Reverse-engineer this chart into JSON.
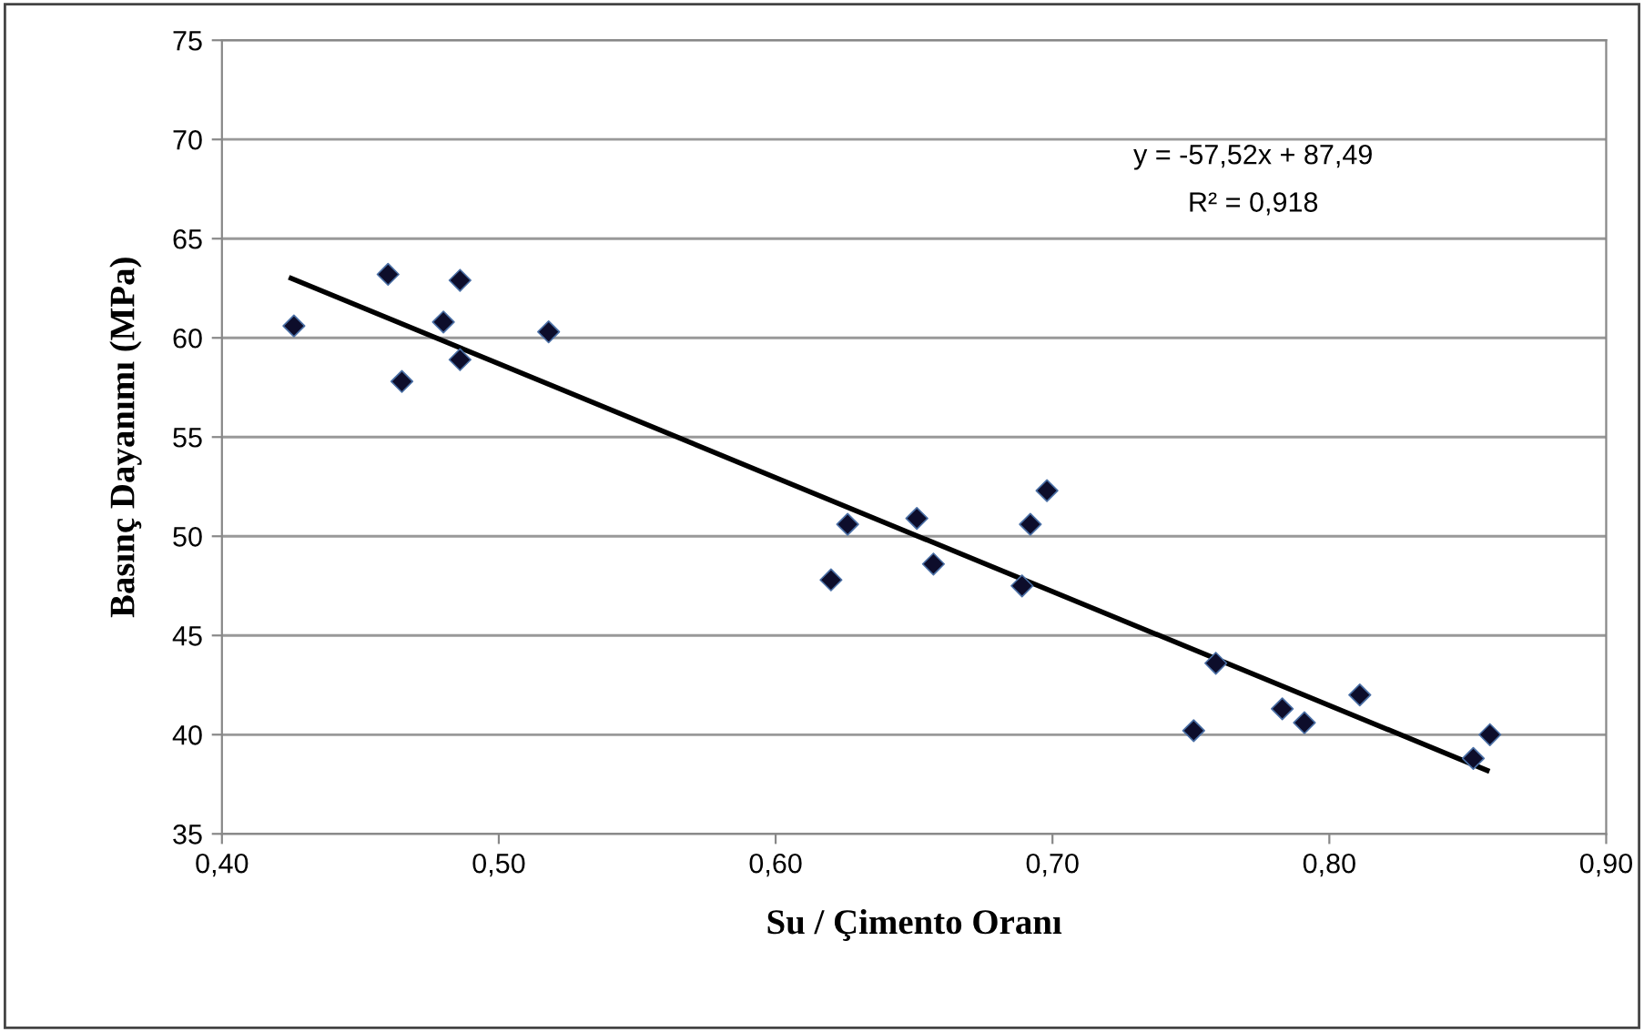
{
  "chart_data": {
    "type": "scatter",
    "xlabel": "Su / Çimento Oranı",
    "ylabel": "Basınç Dayanımı (MPa)",
    "xlim": [
      0.4,
      0.9
    ],
    "ylim": [
      35,
      75
    ],
    "xticks": [
      {
        "value": 0.4,
        "label": "0,40"
      },
      {
        "value": 0.5,
        "label": "0,50"
      },
      {
        "value": 0.6,
        "label": "0,60"
      },
      {
        "value": 0.7,
        "label": "0,70"
      },
      {
        "value": 0.8,
        "label": "0,80"
      },
      {
        "value": 0.9,
        "label": "0,90"
      }
    ],
    "yticks": [
      35,
      40,
      45,
      50,
      55,
      60,
      65,
      70,
      75
    ],
    "grid": "y",
    "legend": false,
    "marker": "diamond",
    "annotations": [
      "y = -57,52x + 87,49",
      "R² = 0,918"
    ],
    "series": [
      {
        "color": "#0d0d2b",
        "x": [
          0.426,
          0.46,
          0.465,
          0.48,
          0.486,
          0.486,
          0.518,
          0.62,
          0.626,
          0.651,
          0.657,
          0.689,
          0.692,
          0.698,
          0.751,
          0.759,
          0.783,
          0.791,
          0.811,
          0.852,
          0.858
        ],
        "values": [
          60.6,
          63.2,
          57.8,
          60.8,
          62.9,
          58.9,
          60.3,
          47.8,
          50.6,
          50.9,
          48.6,
          47.5,
          50.6,
          52.3,
          40.2,
          43.6,
          41.3,
          40.6,
          42.0,
          38.8,
          40.0
        ]
      },
      {
        "type": "line",
        "color": "#000000",
        "line_style": "solid",
        "marker": "none",
        "x": [
          0.425,
          0.857
        ],
        "values": [
          63.0,
          38.2
        ]
      }
    ]
  }
}
